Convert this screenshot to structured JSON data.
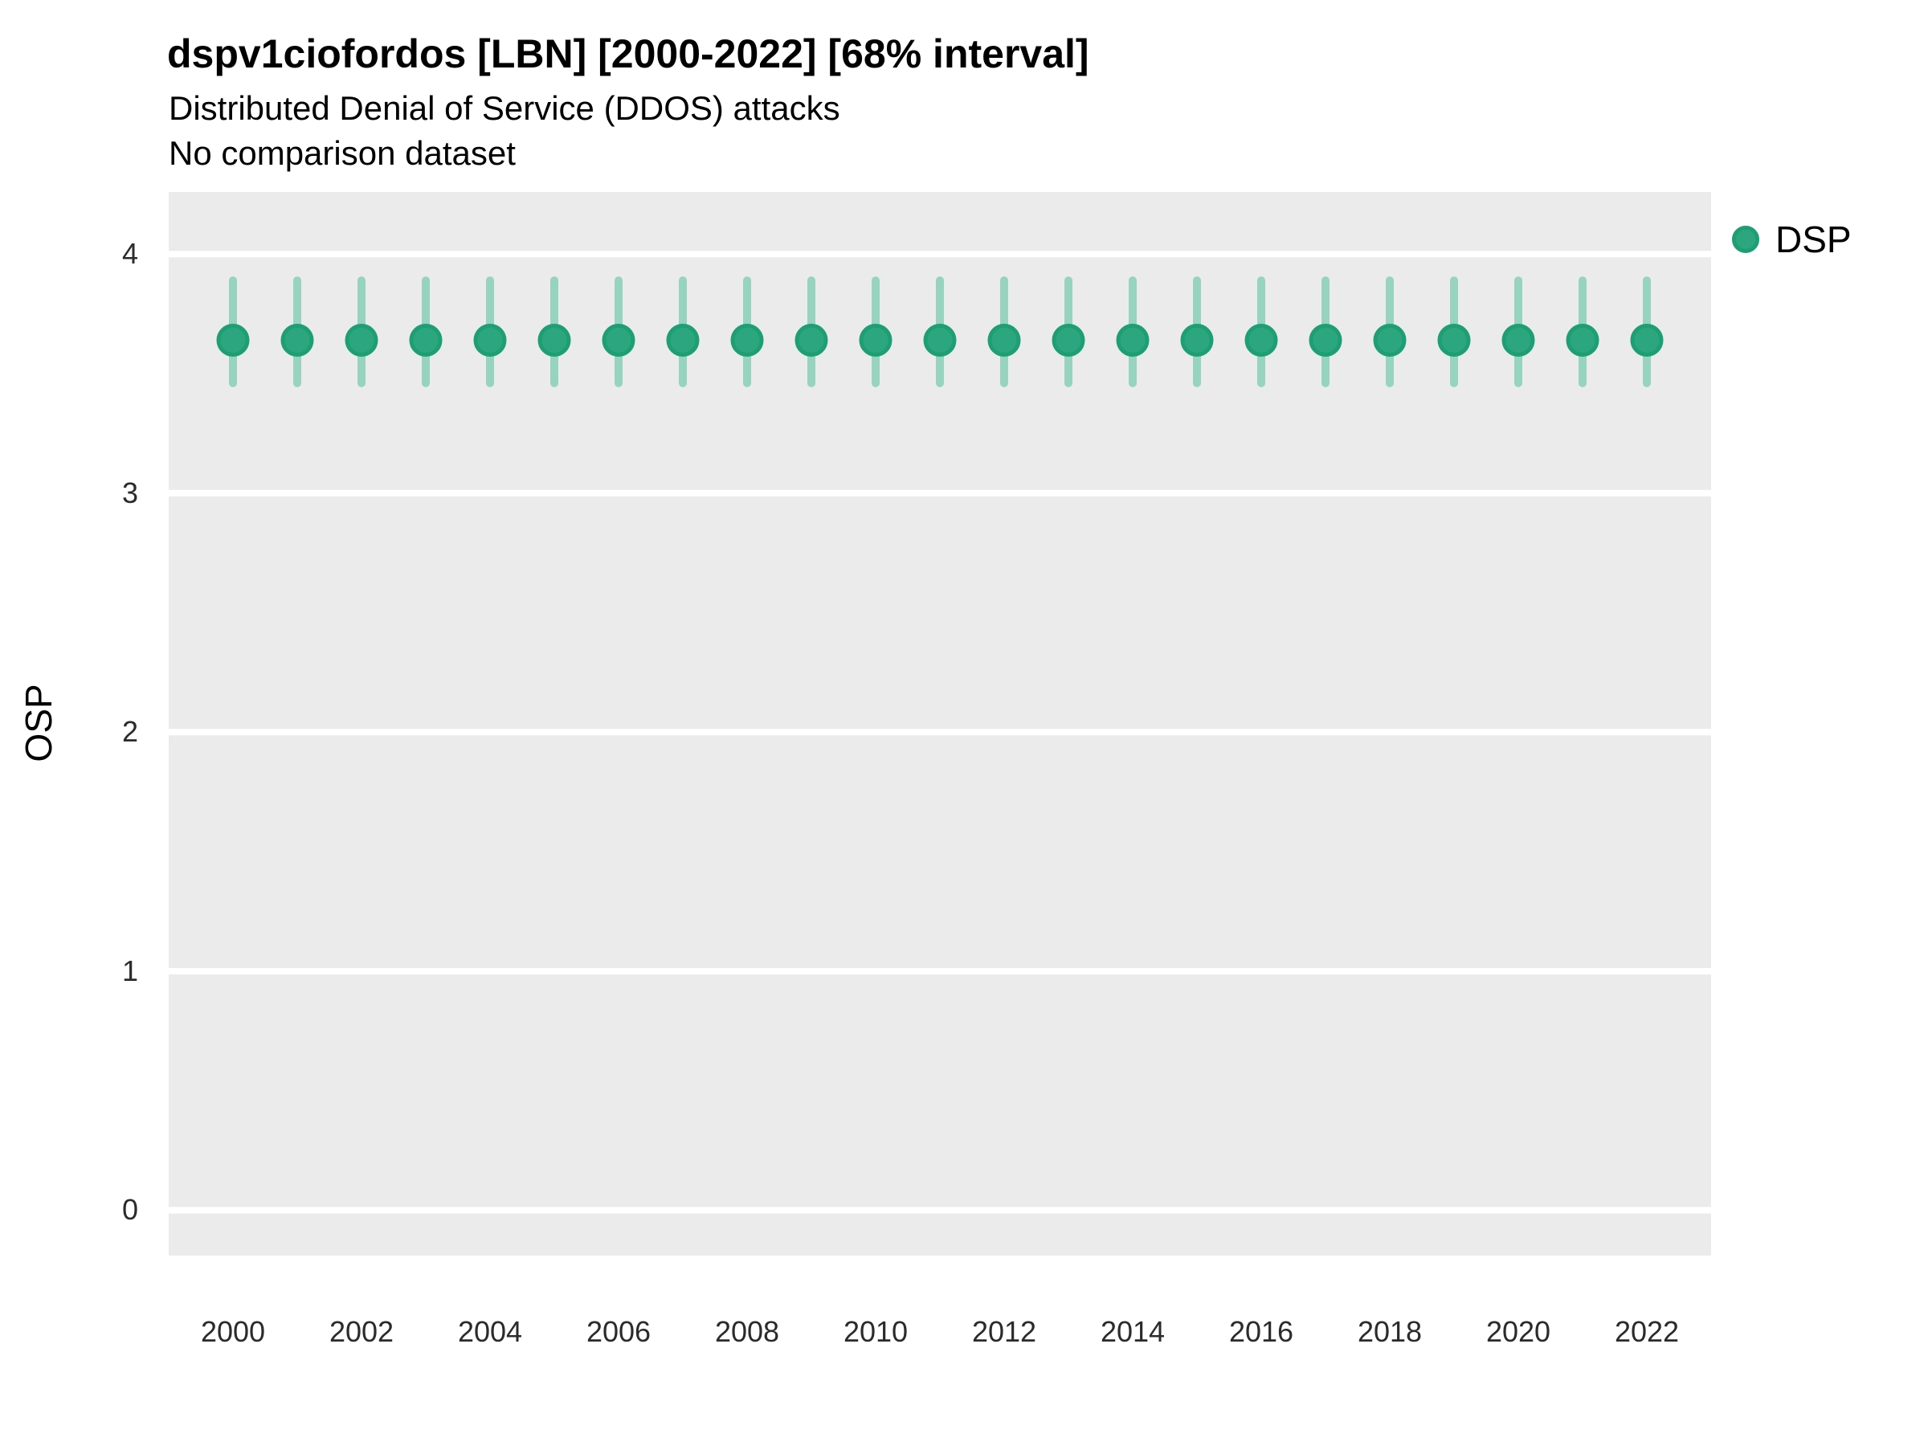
{
  "header": {
    "title": "dspv1ciofordos [LBN] [2000-2022] [68% interval]",
    "subtitle": "Distributed Denial of Service (DDOS) attacks",
    "comparison_note": "No comparison dataset"
  },
  "legend": {
    "items": [
      {
        "label": "DSP",
        "fill": "#2CA67E",
        "stroke": "#1E9E73"
      }
    ]
  },
  "colors": {
    "panel_bg": "#EBEBEB",
    "gridline": "#FFFFFF",
    "point_fill": "#2CA67E",
    "point_stroke": "#1E9E73",
    "interval_bar": "#96D4BF",
    "axis_text": "#2B2B2B"
  },
  "chart_data": {
    "type": "scatter",
    "title": "dspv1ciofordos [LBN] [2000-2022] [68% interval]",
    "subtitle": "Distributed Denial of Service (DDOS) attacks",
    "note": "No comparison dataset",
    "interval": "68%",
    "xlabel": "",
    "ylabel": "OSP",
    "legend_position": "right-top",
    "grid": "major horizontal white lines on gray panel",
    "x": [
      2000,
      2001,
      2002,
      2003,
      2004,
      2005,
      2006,
      2007,
      2008,
      2009,
      2010,
      2011,
      2012,
      2013,
      2014,
      2015,
      2016,
      2017,
      2018,
      2019,
      2020,
      2021,
      2022
    ],
    "series": [
      {
        "name": "DSP",
        "values": [
          3.64,
          3.64,
          3.64,
          3.64,
          3.64,
          3.64,
          3.64,
          3.64,
          3.64,
          3.64,
          3.64,
          3.64,
          3.64,
          3.64,
          3.64,
          3.64,
          3.64,
          3.64,
          3.64,
          3.64,
          3.64,
          3.64,
          3.64
        ],
        "lower": [
          3.46,
          3.46,
          3.46,
          3.46,
          3.46,
          3.46,
          3.46,
          3.46,
          3.46,
          3.46,
          3.46,
          3.46,
          3.46,
          3.46,
          3.46,
          3.46,
          3.46,
          3.46,
          3.46,
          3.46,
          3.46,
          3.46,
          3.46
        ],
        "upper": [
          3.89,
          3.89,
          3.89,
          3.89,
          3.89,
          3.89,
          3.89,
          3.89,
          3.89,
          3.89,
          3.89,
          3.89,
          3.89,
          3.89,
          3.89,
          3.89,
          3.89,
          3.89,
          3.89,
          3.89,
          3.89,
          3.89,
          3.89
        ]
      }
    ],
    "xbreaks": [
      2000,
      2002,
      2004,
      2006,
      2008,
      2010,
      2012,
      2014,
      2016,
      2018,
      2020,
      2022
    ],
    "ybreaks": [
      0,
      1,
      2,
      3,
      4
    ],
    "xlim": [
      1999,
      2023
    ],
    "ylim": [
      -0.19,
      4.26
    ]
  }
}
